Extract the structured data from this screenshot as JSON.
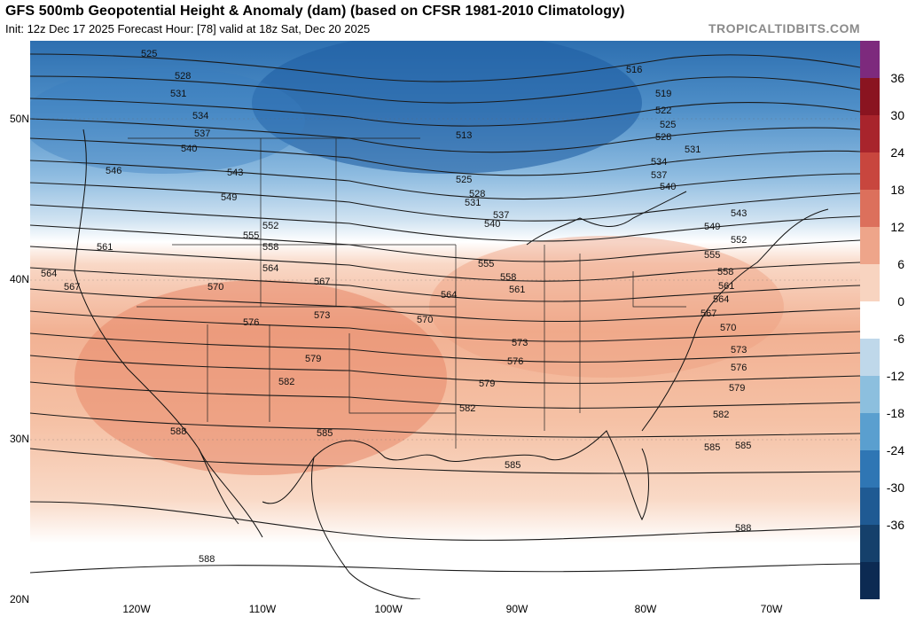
{
  "title": "GFS 500mb Geopotential Height & Anomaly (dam) (based on CFSR 1981-2010 Climatology)",
  "subtitle": "Init: 12z Dec 17 2025   Forecast Hour: [78]   valid at 18z Sat, Dec 20 2025",
  "brand": "TROPICALTIDBITS.COM",
  "colorbar": {
    "labels": [
      "36",
      "30",
      "24",
      "18",
      "12",
      "6",
      "0",
      "-6",
      "-12",
      "-18",
      "-24",
      "-30",
      "-36"
    ],
    "colors": [
      "#7d2a7d",
      "#8a1420",
      "#a8242c",
      "#c8463e",
      "#dc705c",
      "#eea58a",
      "#f8d4c0",
      "#ffffff",
      "#bfd8ea",
      "#8cbfde",
      "#5a9fcf",
      "#2f76b4",
      "#1f5a93",
      "#15406b",
      "#0c2a52"
    ]
  },
  "latitudes": [
    "50N",
    "40N",
    "30N",
    "20N"
  ],
  "longitudes": [
    "120W",
    "110W",
    "100W",
    "90W",
    "80W",
    "70W"
  ],
  "contour_labels": [
    "525",
    "528",
    "531",
    "534",
    "537",
    "540",
    "546",
    "543",
    "549",
    "552",
    "555",
    "558",
    "561",
    "564",
    "567",
    "570",
    "573",
    "576",
    "579",
    "582",
    "585",
    "588",
    "516",
    "519",
    "522",
    "513"
  ]
}
